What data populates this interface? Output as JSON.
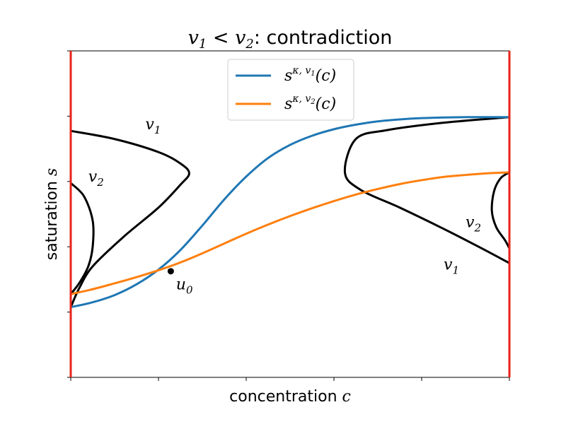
{
  "chart_data": {
    "type": "line",
    "title": {
      "v1": "v",
      "v1_sub": "1",
      "op": " < ",
      "v2": "v",
      "v2_sub": "2",
      "rest": ": contradiction"
    },
    "xlabel": {
      "text": "concentration ",
      "var": "c"
    },
    "ylabel": {
      "text": "saturation ",
      "var": "s"
    },
    "xlim": [
      0,
      1
    ],
    "ylim": [
      0,
      1
    ],
    "grid": false,
    "legend_position": "top-center",
    "legend": [
      {
        "base": "s",
        "sup": "κ, v",
        "supsub": "1",
        "arg": "(c)",
        "color": "#1f77b4"
      },
      {
        "base": "s",
        "sup": "κ, v",
        "supsub": "2",
        "arg": "(c)",
        "color": "#ff7f0e"
      }
    ],
    "series": [
      {
        "name": "s^{κ,v1}(c)",
        "color": "#1f77b4",
        "x": [
          0.0,
          0.05,
          0.1,
          0.15,
          0.2,
          0.25,
          0.3,
          0.35,
          0.4,
          0.45,
          0.5,
          0.55,
          0.6,
          0.65,
          0.7,
          0.75,
          0.8,
          0.85,
          0.9,
          0.95,
          1.0
        ],
        "y": [
          0.215,
          0.23,
          0.252,
          0.285,
          0.33,
          0.39,
          0.465,
          0.545,
          0.615,
          0.672,
          0.712,
          0.74,
          0.76,
          0.774,
          0.784,
          0.79,
          0.794,
          0.796,
          0.797,
          0.797,
          0.797
        ]
      },
      {
        "name": "s^{κ,v2}(c)",
        "color": "#ff7f0e",
        "x": [
          0.0,
          0.05,
          0.1,
          0.15,
          0.2,
          0.25,
          0.3,
          0.35,
          0.4,
          0.45,
          0.5,
          0.55,
          0.6,
          0.65,
          0.7,
          0.75,
          0.8,
          0.85,
          0.9,
          0.95,
          1.0
        ],
        "y": [
          0.255,
          0.27,
          0.288,
          0.307,
          0.328,
          0.352,
          0.38,
          0.41,
          0.44,
          0.468,
          0.494,
          0.518,
          0.54,
          0.56,
          0.577,
          0.592,
          0.604,
          0.614,
          0.62,
          0.625,
          0.628
        ]
      },
      {
        "name": "v1 left curve",
        "color": "#000000",
        "x": [
          0.0,
          0.1,
          0.2,
          0.25,
          0.27,
          0.25,
          0.2,
          0.12,
          0.05,
          0.02,
          0.0
        ],
        "y": [
          0.755,
          0.73,
          0.69,
          0.655,
          0.625,
          0.59,
          0.52,
          0.43,
          0.34,
          0.275,
          0.215
        ]
      },
      {
        "name": "v2 left curve",
        "color": "#000000",
        "x": [
          0.0,
          0.03,
          0.05,
          0.05,
          0.04,
          0.02,
          0.0
        ],
        "y": [
          0.595,
          0.555,
          0.48,
          0.4,
          0.34,
          0.29,
          0.255
        ]
      },
      {
        "name": "v1 right curve",
        "color": "#000000",
        "x": [
          1.0,
          0.85,
          0.72,
          0.65,
          0.625,
          0.66,
          0.75,
          0.85,
          0.93,
          1.0
        ],
        "y": [
          0.797,
          0.78,
          0.757,
          0.73,
          0.628,
          0.575,
          0.52,
          0.455,
          0.4,
          0.35
        ]
      },
      {
        "name": "v2 right curve",
        "color": "#000000",
        "x": [
          1.0,
          0.98,
          0.965,
          0.96,
          0.97,
          0.99,
          1.0
        ],
        "y": [
          0.628,
          0.61,
          0.57,
          0.51,
          0.46,
          0.42,
          0.395
        ]
      }
    ],
    "boundaries": {
      "x": [
        0,
        1
      ],
      "color": "#e8231a"
    },
    "point": {
      "label": "u",
      "label_sub": "0",
      "x": 0.228,
      "y": 0.325,
      "color": "#000000"
    },
    "annotations": [
      {
        "text": "v",
        "sub": "1",
        "x": 0.17,
        "y": 0.76
      },
      {
        "text": "v",
        "sub": "2",
        "x": 0.04,
        "y": 0.6
      },
      {
        "text": "v",
        "sub": "2",
        "x": 0.9,
        "y": 0.46
      },
      {
        "text": "v",
        "sub": "1",
        "x": 0.85,
        "y": 0.33
      },
      {
        "text": "u",
        "sub": "0",
        "x": 0.24,
        "y": 0.27
      }
    ],
    "x_ticks": [
      0,
      0.2,
      0.4,
      0.6,
      0.8,
      1.0
    ],
    "y_ticks": [
      0,
      0.2,
      0.4,
      0.6,
      0.8,
      1.0
    ]
  }
}
